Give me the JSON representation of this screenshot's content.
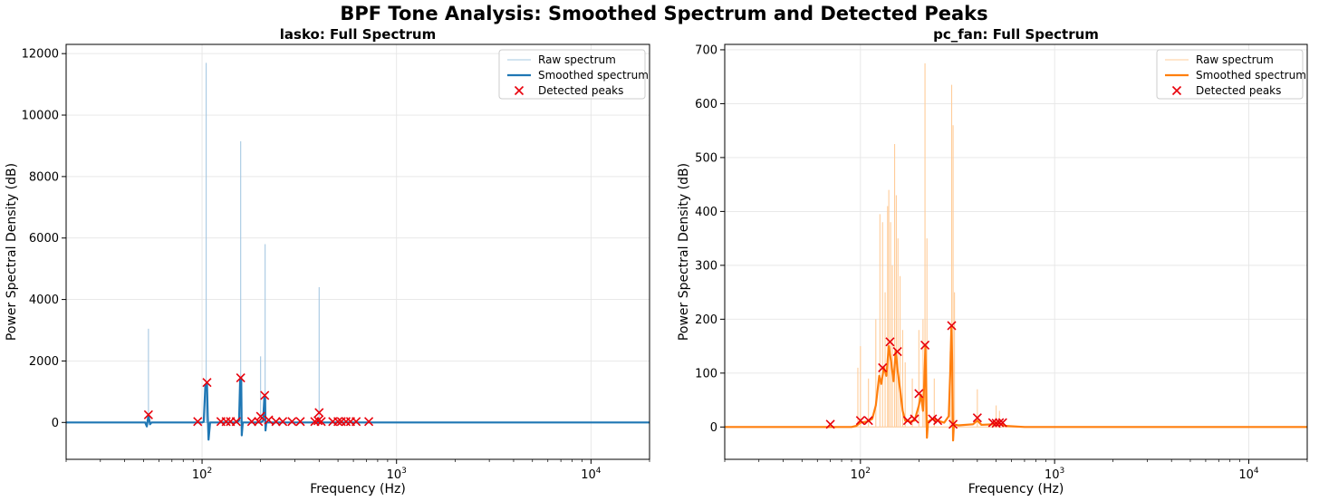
{
  "figure": {
    "suptitle": "BPF Tone Analysis: Smoothed Spectrum and Detected Peaks"
  },
  "colors": {
    "lasko": "#1f77b4",
    "lasko_raw": "#a6c8e2",
    "pc_fan": "#ff7f0e",
    "pc_fan_raw": "#ffcc99",
    "peaks": "#e8000b",
    "grid": "#e6e6e6"
  },
  "chart_data": [
    {
      "type": "line",
      "title": "lasko: Full Spectrum",
      "xlabel": "Frequency (Hz)",
      "ylabel": "Power Spectral Density (dB)",
      "xscale": "log",
      "xlim": [
        20,
        20000
      ],
      "ylim": [
        -1200,
        12300
      ],
      "xticks": [
        {
          "value": 100,
          "base": "10",
          "exp": "2"
        },
        {
          "value": 1000,
          "base": "10",
          "exp": "3"
        },
        {
          "value": 10000,
          "base": "10",
          "exp": "4"
        }
      ],
      "yticks": [
        0,
        2000,
        4000,
        6000,
        8000,
        10000,
        12000
      ],
      "grid": true,
      "legend_position": "top-right",
      "legend": [
        "Raw spectrum",
        "Smoothed spectrum",
        "Detected peaks"
      ],
      "raw_spectrum": {
        "name": "Raw spectrum",
        "spikes": [
          [
            53,
            3050
          ],
          [
            105,
            11700
          ],
          [
            158,
            9150
          ],
          [
            200,
            2150
          ],
          [
            211,
            5800
          ],
          [
            400,
            4400
          ]
        ]
      },
      "smoothed_spectrum": {
        "name": "Smoothed spectrum",
        "points": [
          [
            20,
            0
          ],
          [
            51,
            0
          ],
          [
            52,
            -130
          ],
          [
            53,
            240
          ],
          [
            54,
            -60
          ],
          [
            55,
            0
          ],
          [
            100,
            0
          ],
          [
            102,
            20
          ],
          [
            104,
            1200
          ],
          [
            106,
            1300
          ],
          [
            107,
            200
          ],
          [
            108,
            -560
          ],
          [
            110,
            0
          ],
          [
            150,
            0
          ],
          [
            155,
            60
          ],
          [
            157,
            1400
          ],
          [
            159,
            1450
          ],
          [
            160,
            -420
          ],
          [
            162,
            0
          ],
          [
            200,
            0
          ],
          [
            206,
            50
          ],
          [
            209,
            800
          ],
          [
            211,
            850
          ],
          [
            212,
            -260
          ],
          [
            214,
            0
          ],
          [
            20000,
            0
          ]
        ]
      },
      "detected_peaks": {
        "name": "Detected peaks",
        "points": [
          [
            53,
            250
          ],
          [
            95,
            30
          ],
          [
            106,
            1300
          ],
          [
            125,
            30
          ],
          [
            133,
            30
          ],
          [
            140,
            30
          ],
          [
            150,
            30
          ],
          [
            158,
            1450
          ],
          [
            180,
            30
          ],
          [
            195,
            30
          ],
          [
            200,
            200
          ],
          [
            210,
            880
          ],
          [
            220,
            80
          ],
          [
            240,
            30
          ],
          [
            260,
            30
          ],
          [
            290,
            30
          ],
          [
            320,
            30
          ],
          [
            380,
            30
          ],
          [
            395,
            60
          ],
          [
            400,
            320
          ],
          [
            410,
            30
          ],
          [
            470,
            30
          ],
          [
            500,
            30
          ],
          [
            520,
            30
          ],
          [
            550,
            30
          ],
          [
            580,
            30
          ],
          [
            620,
            30
          ],
          [
            720,
            30
          ]
        ]
      }
    },
    {
      "type": "line",
      "title": "pc_fan: Full Spectrum",
      "xlabel": "Frequency (Hz)",
      "ylabel": "Power Spectral Density (dB)",
      "xscale": "log",
      "xlim": [
        20,
        20000
      ],
      "ylim": [
        -60,
        710
      ],
      "xticks": [
        {
          "value": 100,
          "base": "10",
          "exp": "2"
        },
        {
          "value": 1000,
          "base": "10",
          "exp": "3"
        },
        {
          "value": 10000,
          "base": "10",
          "exp": "4"
        }
      ],
      "yticks": [
        0,
        100,
        200,
        300,
        400,
        500,
        600,
        700
      ],
      "grid": true,
      "legend_position": "top-right",
      "legend": [
        "Raw spectrum",
        "Smoothed spectrum",
        "Detected peaks"
      ],
      "raw_spectrum": {
        "name": "Raw spectrum",
        "spikes": [
          [
            97,
            110
          ],
          [
            100,
            150
          ],
          [
            110,
            90
          ],
          [
            120,
            200
          ],
          [
            126,
            395
          ],
          [
            130,
            380
          ],
          [
            134,
            250
          ],
          [
            138,
            410
          ],
          [
            140,
            440
          ],
          [
            143,
            380
          ],
          [
            146,
            300
          ],
          [
            150,
            525
          ],
          [
            153,
            430
          ],
          [
            156,
            350
          ],
          [
            160,
            280
          ],
          [
            165,
            180
          ],
          [
            170,
            120
          ],
          [
            185,
            90
          ],
          [
            200,
            180
          ],
          [
            210,
            200
          ],
          [
            215,
            675
          ],
          [
            220,
            350
          ],
          [
            240,
            90
          ],
          [
            290,
            140
          ],
          [
            295,
            635
          ],
          [
            300,
            560
          ],
          [
            305,
            250
          ],
          [
            400,
            70
          ],
          [
            500,
            40
          ],
          [
            520,
            30
          ]
        ]
      },
      "smoothed_spectrum": {
        "name": "Smoothed spectrum",
        "points": [
          [
            20,
            0
          ],
          [
            90,
            0
          ],
          [
            95,
            2
          ],
          [
            100,
            8
          ],
          [
            108,
            10
          ],
          [
            115,
            15
          ],
          [
            120,
            40
          ],
          [
            125,
            95
          ],
          [
            128,
            80
          ],
          [
            132,
            110
          ],
          [
            136,
            95
          ],
          [
            140,
            150
          ],
          [
            144,
            120
          ],
          [
            148,
            85
          ],
          [
            152,
            140
          ],
          [
            156,
            100
          ],
          [
            160,
            70
          ],
          [
            165,
            30
          ],
          [
            170,
            12
          ],
          [
            180,
            10
          ],
          [
            190,
            12
          ],
          [
            200,
            40
          ],
          [
            205,
            60
          ],
          [
            210,
            30
          ],
          [
            213,
            80
          ],
          [
            216,
            150
          ],
          [
            218,
            70
          ],
          [
            220,
            -20
          ],
          [
            223,
            10
          ],
          [
            235,
            15
          ],
          [
            250,
            12
          ],
          [
            270,
            8
          ],
          [
            285,
            20
          ],
          [
            290,
            100
          ],
          [
            294,
            185
          ],
          [
            297,
            120
          ],
          [
            300,
            -25
          ],
          [
            303,
            5
          ],
          [
            320,
            3
          ],
          [
            380,
            5
          ],
          [
            400,
            12
          ],
          [
            420,
            4
          ],
          [
            480,
            5
          ],
          [
            500,
            8
          ],
          [
            520,
            6
          ],
          [
            560,
            2
          ],
          [
            700,
            0
          ],
          [
            20000,
            0
          ]
        ]
      },
      "detected_peaks": {
        "name": "Detected peaks",
        "points": [
          [
            70,
            5
          ],
          [
            100,
            12
          ],
          [
            110,
            12
          ],
          [
            130,
            110
          ],
          [
            142,
            158
          ],
          [
            155,
            140
          ],
          [
            175,
            12
          ],
          [
            190,
            15
          ],
          [
            200,
            62
          ],
          [
            215,
            152
          ],
          [
            235,
            15
          ],
          [
            250,
            12
          ],
          [
            295,
            188
          ],
          [
            300,
            5
          ],
          [
            400,
            17
          ],
          [
            480,
            8
          ],
          [
            500,
            7
          ],
          [
            520,
            8
          ],
          [
            540,
            8
          ]
        ]
      }
    }
  ]
}
